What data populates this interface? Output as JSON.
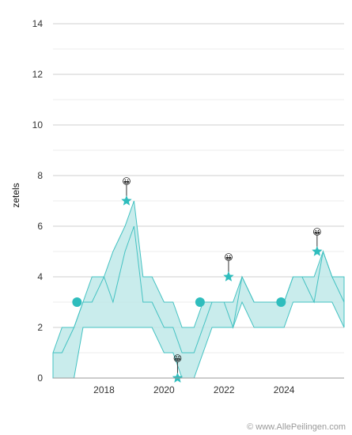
{
  "chart_data": {
    "type": "area",
    "xlabel": "",
    "ylabel": "zetels",
    "ylim": [
      0,
      14
    ],
    "xlim": [
      2016.3,
      2026.0
    ],
    "y_ticks": [
      0,
      2,
      4,
      6,
      8,
      10,
      12,
      14
    ],
    "x_ticks": [
      2018,
      2020,
      2022,
      2024
    ],
    "grid": true,
    "colors": {
      "band_fill": "#bfe9e9",
      "band_line": "#44c2c2",
      "accent": "#2fbdbd",
      "grid": "#dddddd"
    },
    "band": {
      "x": [
        2016.3,
        2016.6,
        2017.0,
        2017.3,
        2017.6,
        2018.0,
        2018.3,
        2018.7,
        2019.0,
        2019.3,
        2019.6,
        2020.0,
        2020.3,
        2020.6,
        2021.0,
        2021.3,
        2021.6,
        2022.0,
        2022.3,
        2022.6,
        2023.0,
        2023.3,
        2023.6,
        2024.0,
        2024.3,
        2024.6,
        2025.0,
        2025.3,
        2025.6,
        2026.0
      ],
      "upper": [
        1,
        2,
        2,
        3,
        4,
        4,
        5,
        6,
        7,
        4,
        4,
        3,
        3,
        2,
        2,
        3,
        3,
        3,
        3,
        4,
        3,
        3,
        3,
        3,
        4,
        4,
        4,
        5,
        4,
        4
      ],
      "lower": [
        0,
        0,
        0,
        2,
        2,
        2,
        2,
        2,
        2,
        2,
        2,
        1,
        1,
        0,
        0,
        1,
        2,
        2,
        2,
        3,
        2,
        2,
        2,
        2,
        3,
        3,
        3,
        3,
        3,
        2
      ]
    },
    "series": [
      {
        "name": "",
        "x": [
          2016.3,
          2016.6,
          2017.0,
          2017.3,
          2017.6,
          2018.0,
          2018.3,
          2018.7,
          2019.0,
          2019.3,
          2019.6,
          2020.0,
          2020.3,
          2020.6,
          2021.0,
          2021.3,
          2021.6,
          2022.0,
          2022.3,
          2022.6,
          2023.0,
          2023.3,
          2023.6,
          2024.0,
          2024.3,
          2024.6,
          2025.0,
          2025.3,
          2025.6,
          2026.0
        ],
        "values": [
          1,
          1,
          2,
          3,
          3,
          4,
          3,
          5,
          6,
          3,
          3,
          2,
          2,
          1,
          1,
          2,
          3,
          3,
          2,
          4,
          3,
          3,
          3,
          3,
          4,
          4,
          3,
          5,
          4,
          3
        ]
      }
    ],
    "markers": [
      {
        "x": 2017.1,
        "y": 3,
        "type": "dot"
      },
      {
        "x": 2018.75,
        "y": 7,
        "type": "star",
        "emoji": "😀"
      },
      {
        "x": 2020.45,
        "y": 0,
        "type": "star",
        "emoji": "😁"
      },
      {
        "x": 2021.2,
        "y": 3,
        "type": "dot"
      },
      {
        "x": 2022.15,
        "y": 4,
        "type": "star",
        "emoji": "😀"
      },
      {
        "x": 2023.9,
        "y": 3,
        "type": "dot"
      },
      {
        "x": 2025.1,
        "y": 5,
        "type": "star",
        "emoji": "😀"
      }
    ]
  },
  "footer": {
    "credit": "© www.AllePeilingen.com"
  }
}
